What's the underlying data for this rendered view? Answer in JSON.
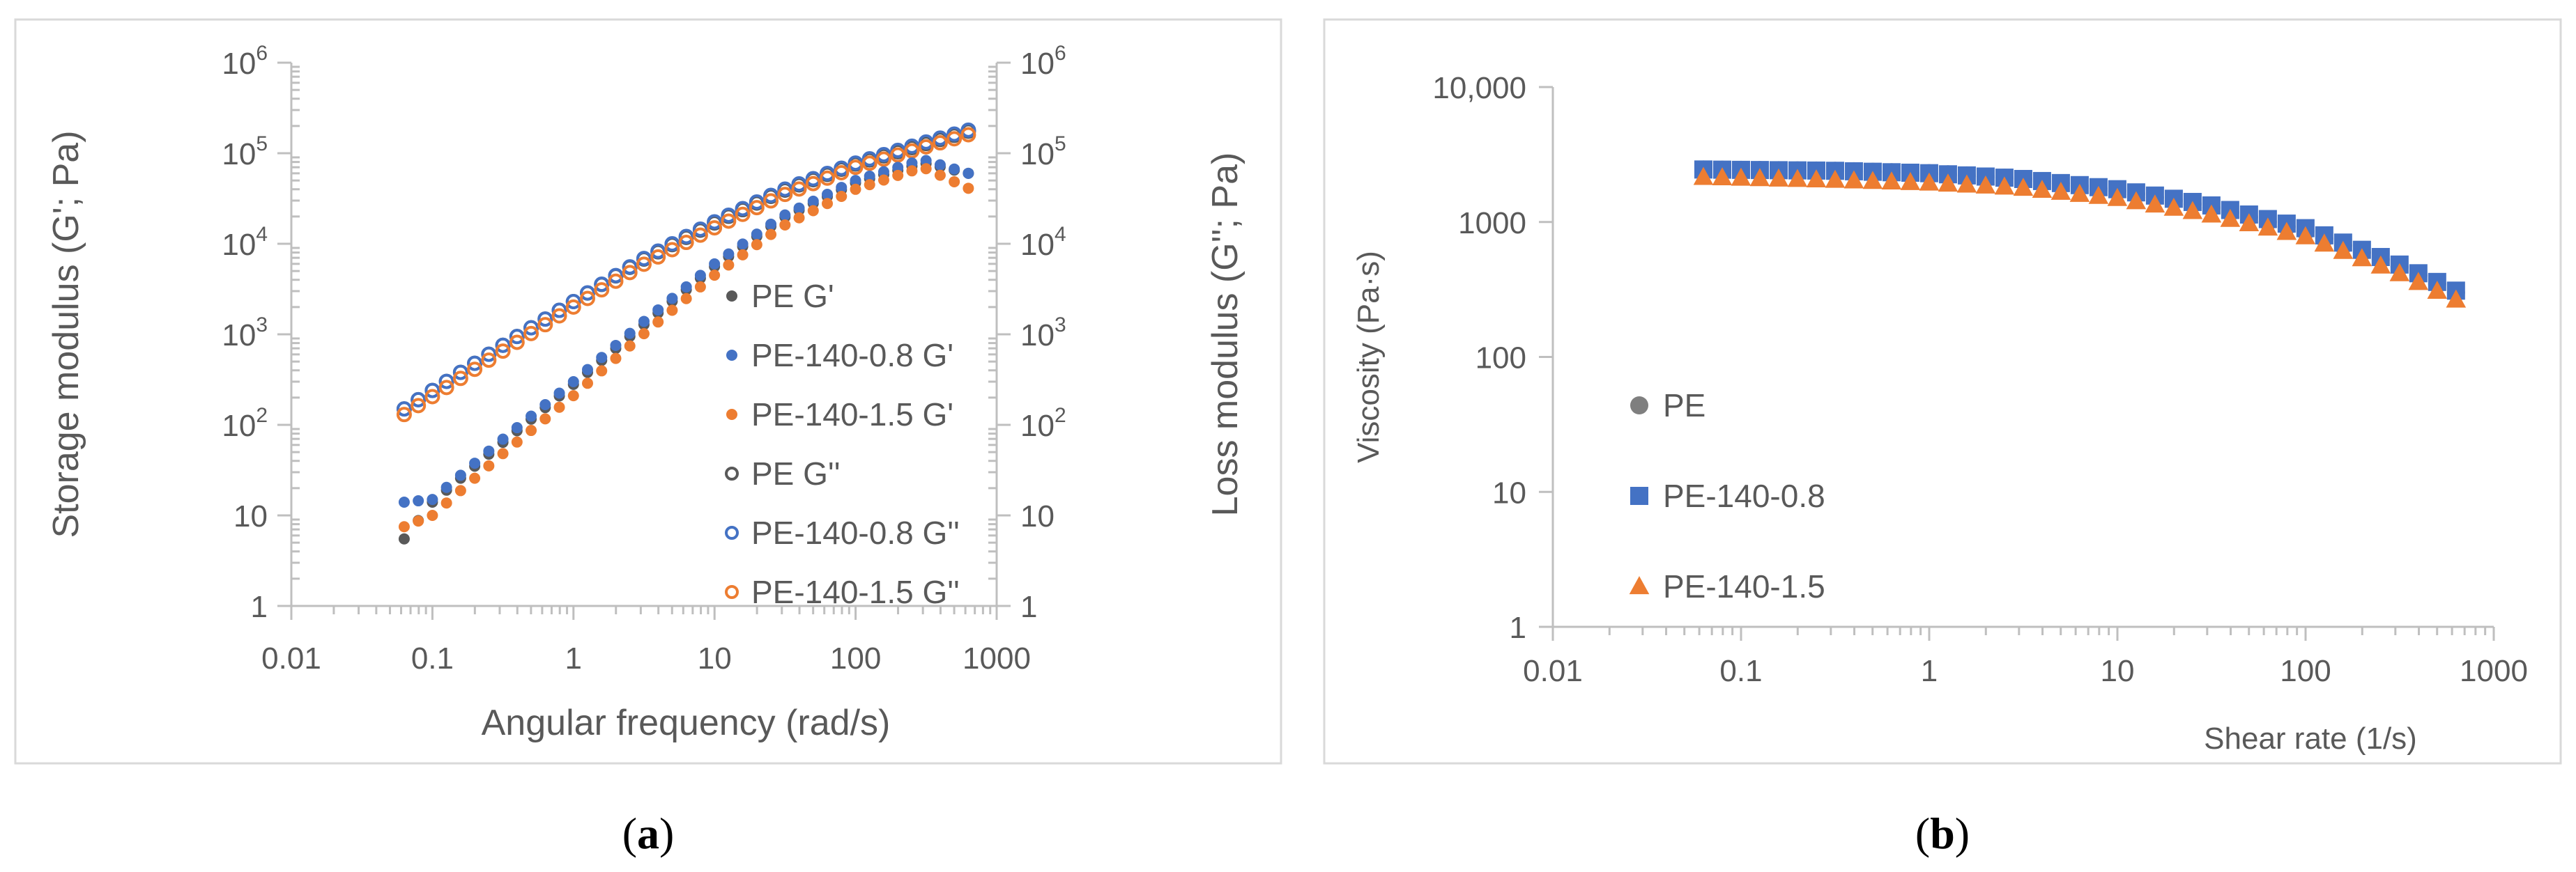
{
  "chart_data": [
    {
      "type": "scatter",
      "panel_label": "a",
      "caption_open": "(",
      "caption_close": ")",
      "xlabel": "Angular frequency (rad/s)",
      "ylabel": "Storage modulus (G'; Pa)",
      "ylabel_right": "Loss modulus (G''; Pa)",
      "xscale": "log",
      "yscale": "log",
      "xlim": [
        0.01,
        1000
      ],
      "ylim": [
        1,
        1000000
      ],
      "x_ticks": [
        {
          "value": 0.01,
          "label": "0.01"
        },
        {
          "value": 0.1,
          "label": "0.1"
        },
        {
          "value": 1,
          "label": "1"
        },
        {
          "value": 10,
          "label": "10"
        },
        {
          "value": 100,
          "label": "100"
        },
        {
          "value": 1000,
          "label": "1000"
        }
      ],
      "y_ticks": [
        {
          "value": 1,
          "base": "1",
          "exp": ""
        },
        {
          "value": 10,
          "base": "10",
          "exp": ""
        },
        {
          "value": 100,
          "base": "10",
          "exp": "2"
        },
        {
          "value": 1000,
          "base": "10",
          "exp": "3"
        },
        {
          "value": 10000,
          "base": "10",
          "exp": "4"
        },
        {
          "value": 100000,
          "base": "10",
          "exp": "5"
        },
        {
          "value": 1000000,
          "base": "10",
          "exp": "6"
        }
      ],
      "legend_position": "lower-right",
      "series": [
        {
          "name": "PE G'",
          "color": "#595959",
          "marker": "filled-circle",
          "law": {
            "gp": [
              [
                0.0631,
                5.5
              ],
              [
                0.1,
                14
              ],
              [
                0.3,
                60
              ],
              [
                1,
                280
              ],
              [
                3,
                1200
              ],
              [
                10,
                5600
              ],
              [
                30,
                19000
              ],
              [
                100,
                47000
              ],
              [
                300,
                78000
              ],
              [
                630,
                60000
              ]
            ]
          }
        },
        {
          "name": "PE-140-0.8 G'",
          "color": "#4472c4",
          "marker": "filled-circle",
          "law": {
            "gp": [
              [
                0.0631,
                14
              ],
              [
                0.1,
                15
              ],
              [
                0.3,
                65
              ],
              [
                1,
                300
              ],
              [
                3,
                1300
              ],
              [
                10,
                6000
              ],
              [
                30,
                20000
              ],
              [
                100,
                50000
              ],
              [
                300,
                85000
              ],
              [
                630,
                60000
              ]
            ]
          }
        },
        {
          "name": "PE-140-1.5 G'",
          "color": "#ed7d31",
          "marker": "filled-circle",
          "law": {
            "gp": [
              [
                0.0631,
                7.5
              ],
              [
                0.1,
                10
              ],
              [
                0.3,
                45
              ],
              [
                1,
                210
              ],
              [
                3,
                950
              ],
              [
                10,
                4500
              ],
              [
                30,
                15500
              ],
              [
                100,
                40000
              ],
              [
                300,
                70000
              ],
              [
                630,
                41000
              ]
            ]
          }
        },
        {
          "name": "PE G''",
          "color": "#595959",
          "marker": "open-circle",
          "law": {
            "gp": [
              [
                0.0631,
                150
              ],
              [
                0.1,
                240
              ],
              [
                0.3,
                720
              ],
              [
                1,
                2300
              ],
              [
                3,
                6500
              ],
              [
                10,
                17000
              ],
              [
                30,
                38000
              ],
              [
                100,
                76000
              ],
              [
                300,
                125000
              ],
              [
                630,
                175000
              ]
            ]
          }
        },
        {
          "name": "PE-140-0.8 G''",
          "color": "#4472c4",
          "marker": "open-circle",
          "law": {
            "gp": [
              [
                0.0631,
                150
              ],
              [
                0.1,
                240
              ],
              [
                0.3,
                720
              ],
              [
                1,
                2300
              ],
              [
                3,
                6600
              ],
              [
                10,
                17500
              ],
              [
                30,
                39000
              ],
              [
                100,
                78000
              ],
              [
                300,
                130000
              ],
              [
                630,
                180000
              ]
            ]
          }
        },
        {
          "name": "PE-140-1.5 G''",
          "color": "#ed7d31",
          "marker": "open-circle",
          "law": {
            "gp": [
              [
                0.0631,
                130
              ],
              [
                0.1,
                205
              ],
              [
                0.3,
                620
              ],
              [
                1,
                2000
              ],
              [
                3,
                5700
              ],
              [
                10,
                15000
              ],
              [
                30,
                34000
              ],
              [
                100,
                70000
              ],
              [
                300,
                115000
              ],
              [
                630,
                160000
              ]
            ]
          }
        }
      ]
    },
    {
      "type": "scatter",
      "panel_label": "b",
      "caption_open": "(",
      "caption_close": ")",
      "xlabel": "Shear rate (1/s)",
      "ylabel": "Viscosity (Pa·s)",
      "xscale": "log",
      "yscale": "log",
      "xlim": [
        0.01,
        1000
      ],
      "ylim": [
        1,
        10000
      ],
      "x_ticks": [
        {
          "value": 0.01,
          "label": "0.01"
        },
        {
          "value": 0.1,
          "label": "0.1"
        },
        {
          "value": 1,
          "label": "1"
        },
        {
          "value": 10,
          "label": "10"
        },
        {
          "value": 100,
          "label": "100"
        },
        {
          "value": 1000,
          "label": "1000"
        }
      ],
      "y_ticks": [
        {
          "value": 1,
          "label": "1"
        },
        {
          "value": 10,
          "label": "10"
        },
        {
          "value": 100,
          "label": "100"
        },
        {
          "value": 1000,
          "label": "1000"
        },
        {
          "value": 10000,
          "label": "10,000"
        }
      ],
      "legend_position": "lower-left",
      "series": [
        {
          "name": "PE",
          "color": "#7f7f7f",
          "marker": "filled-circle",
          "law": {
            "gp": [
              [
                0.0631,
                2450
              ],
              [
                0.3,
                2400
              ],
              [
                1,
                2300
              ],
              [
                3,
                2100
              ],
              [
                10,
                1700
              ],
              [
                30,
                1300
              ],
              [
                100,
                850
              ],
              [
                300,
                480
              ],
              [
                630,
                300
              ]
            ]
          }
        },
        {
          "name": "PE-140-0.8",
          "color": "#4472c4",
          "marker": "square",
          "law": {
            "gp": [
              [
                0.0631,
                2450
              ],
              [
                0.3,
                2400
              ],
              [
                1,
                2300
              ],
              [
                3,
                2100
              ],
              [
                10,
                1750
              ],
              [
                30,
                1350
              ],
              [
                100,
                900
              ],
              [
                300,
                500
              ],
              [
                630,
                310
              ]
            ]
          }
        },
        {
          "name": "PE-140-1.5",
          "color": "#ed7d31",
          "marker": "triangle",
          "law": {
            "gp": [
              [
                0.0631,
                2150
              ],
              [
                0.3,
                2050
              ],
              [
                1,
                1950
              ],
              [
                3,
                1800
              ],
              [
                10,
                1500
              ],
              [
                30,
                1150
              ],
              [
                100,
                780
              ],
              [
                300,
                430
              ],
              [
                630,
                265
              ]
            ]
          }
        }
      ]
    }
  ]
}
